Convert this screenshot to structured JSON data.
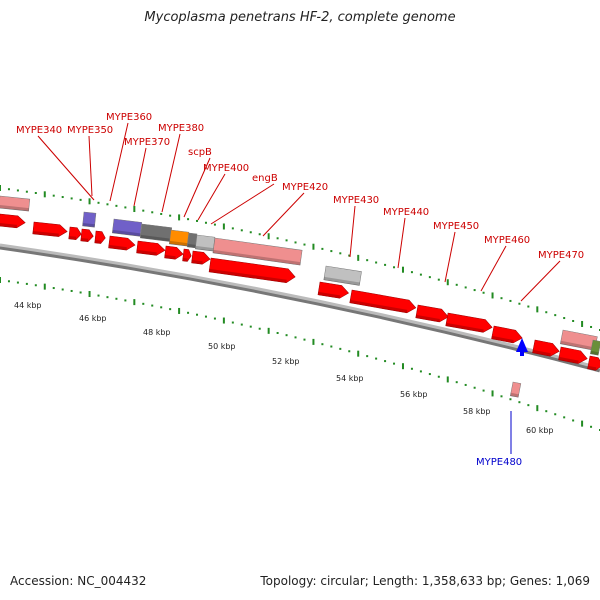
{
  "title": "Mycoplasma penetrans HF-2, complete genome",
  "footer": {
    "accession": "Accession: NC_004432",
    "summary": "Topology: circular; Length: 1,358,633 bp; Genes: 1,069"
  },
  "colors": {
    "cds": "#ff0000",
    "pseudo": "#ef8f8f",
    "gray": "#c0c0c0",
    "darkgray": "#707070",
    "purple": "#7060c8",
    "orange": "#ff8c00",
    "blue": "#0000ff",
    "label_red": "#cc0000",
    "label_blue": "#0000cc",
    "tick": "#228b22"
  },
  "axis": {
    "unit": "kbp",
    "ticks": [
      "44 kbp",
      "46 kbp",
      "48 kbp",
      "50 kbp",
      "52 kbp",
      "54 kbp",
      "56 kbp",
      "58 kbp",
      "60 kbp"
    ]
  },
  "gene_labels": [
    {
      "name": "MYPE340",
      "color": "red"
    },
    {
      "name": "MYPE350",
      "color": "red"
    },
    {
      "name": "MYPE360",
      "color": "red"
    },
    {
      "name": "MYPE370",
      "color": "red"
    },
    {
      "name": "MYPE380",
      "color": "red"
    },
    {
      "name": "scpB",
      "color": "red"
    },
    {
      "name": "MYPE400",
      "color": "red"
    },
    {
      "name": "engB",
      "color": "red"
    },
    {
      "name": "MYPE420",
      "color": "red"
    },
    {
      "name": "MYPE430",
      "color": "red"
    },
    {
      "name": "MYPE440",
      "color": "red"
    },
    {
      "name": "MYPE450",
      "color": "red"
    },
    {
      "name": "MYPE460",
      "color": "red"
    },
    {
      "name": "MYPE470",
      "color": "red"
    },
    {
      "name": "MYPE480",
      "color": "blue"
    }
  ]
}
